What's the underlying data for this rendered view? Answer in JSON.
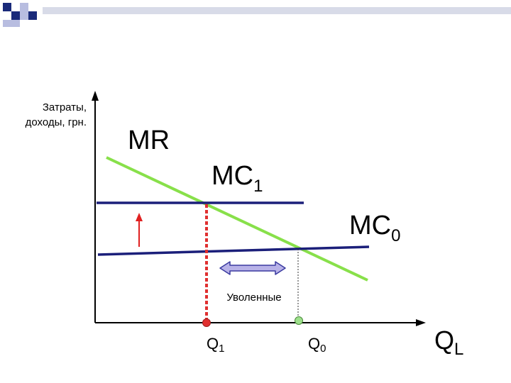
{
  "axis": {
    "y_label_line1": "Затраты,",
    "y_label_line2": "доходы, грн.",
    "x_label": "Q",
    "x_label_sub": "L"
  },
  "curves": {
    "mr": "MR",
    "mc1": "MC",
    "mc1_sub": "1",
    "mc0": "MC",
    "mc0_sub": "0"
  },
  "points": {
    "q1": "Q",
    "q1_sub": "1",
    "q0": "Q",
    "q0_sub": "0"
  },
  "annotation": {
    "fired": "Уволенные"
  },
  "colors": {
    "mr_line": "#88e04a",
    "mc_lines": "#1b1f7a",
    "q1_marker": "#e03030",
    "q0_marker": "#9ee08c",
    "arrow_up": "#e02020",
    "arrow_double_fill": "#b8b2e8",
    "arrow_double_stroke": "#3a3aa0",
    "decor_dark": "#1a2a7a",
    "decor_light": "#b8bde0"
  }
}
